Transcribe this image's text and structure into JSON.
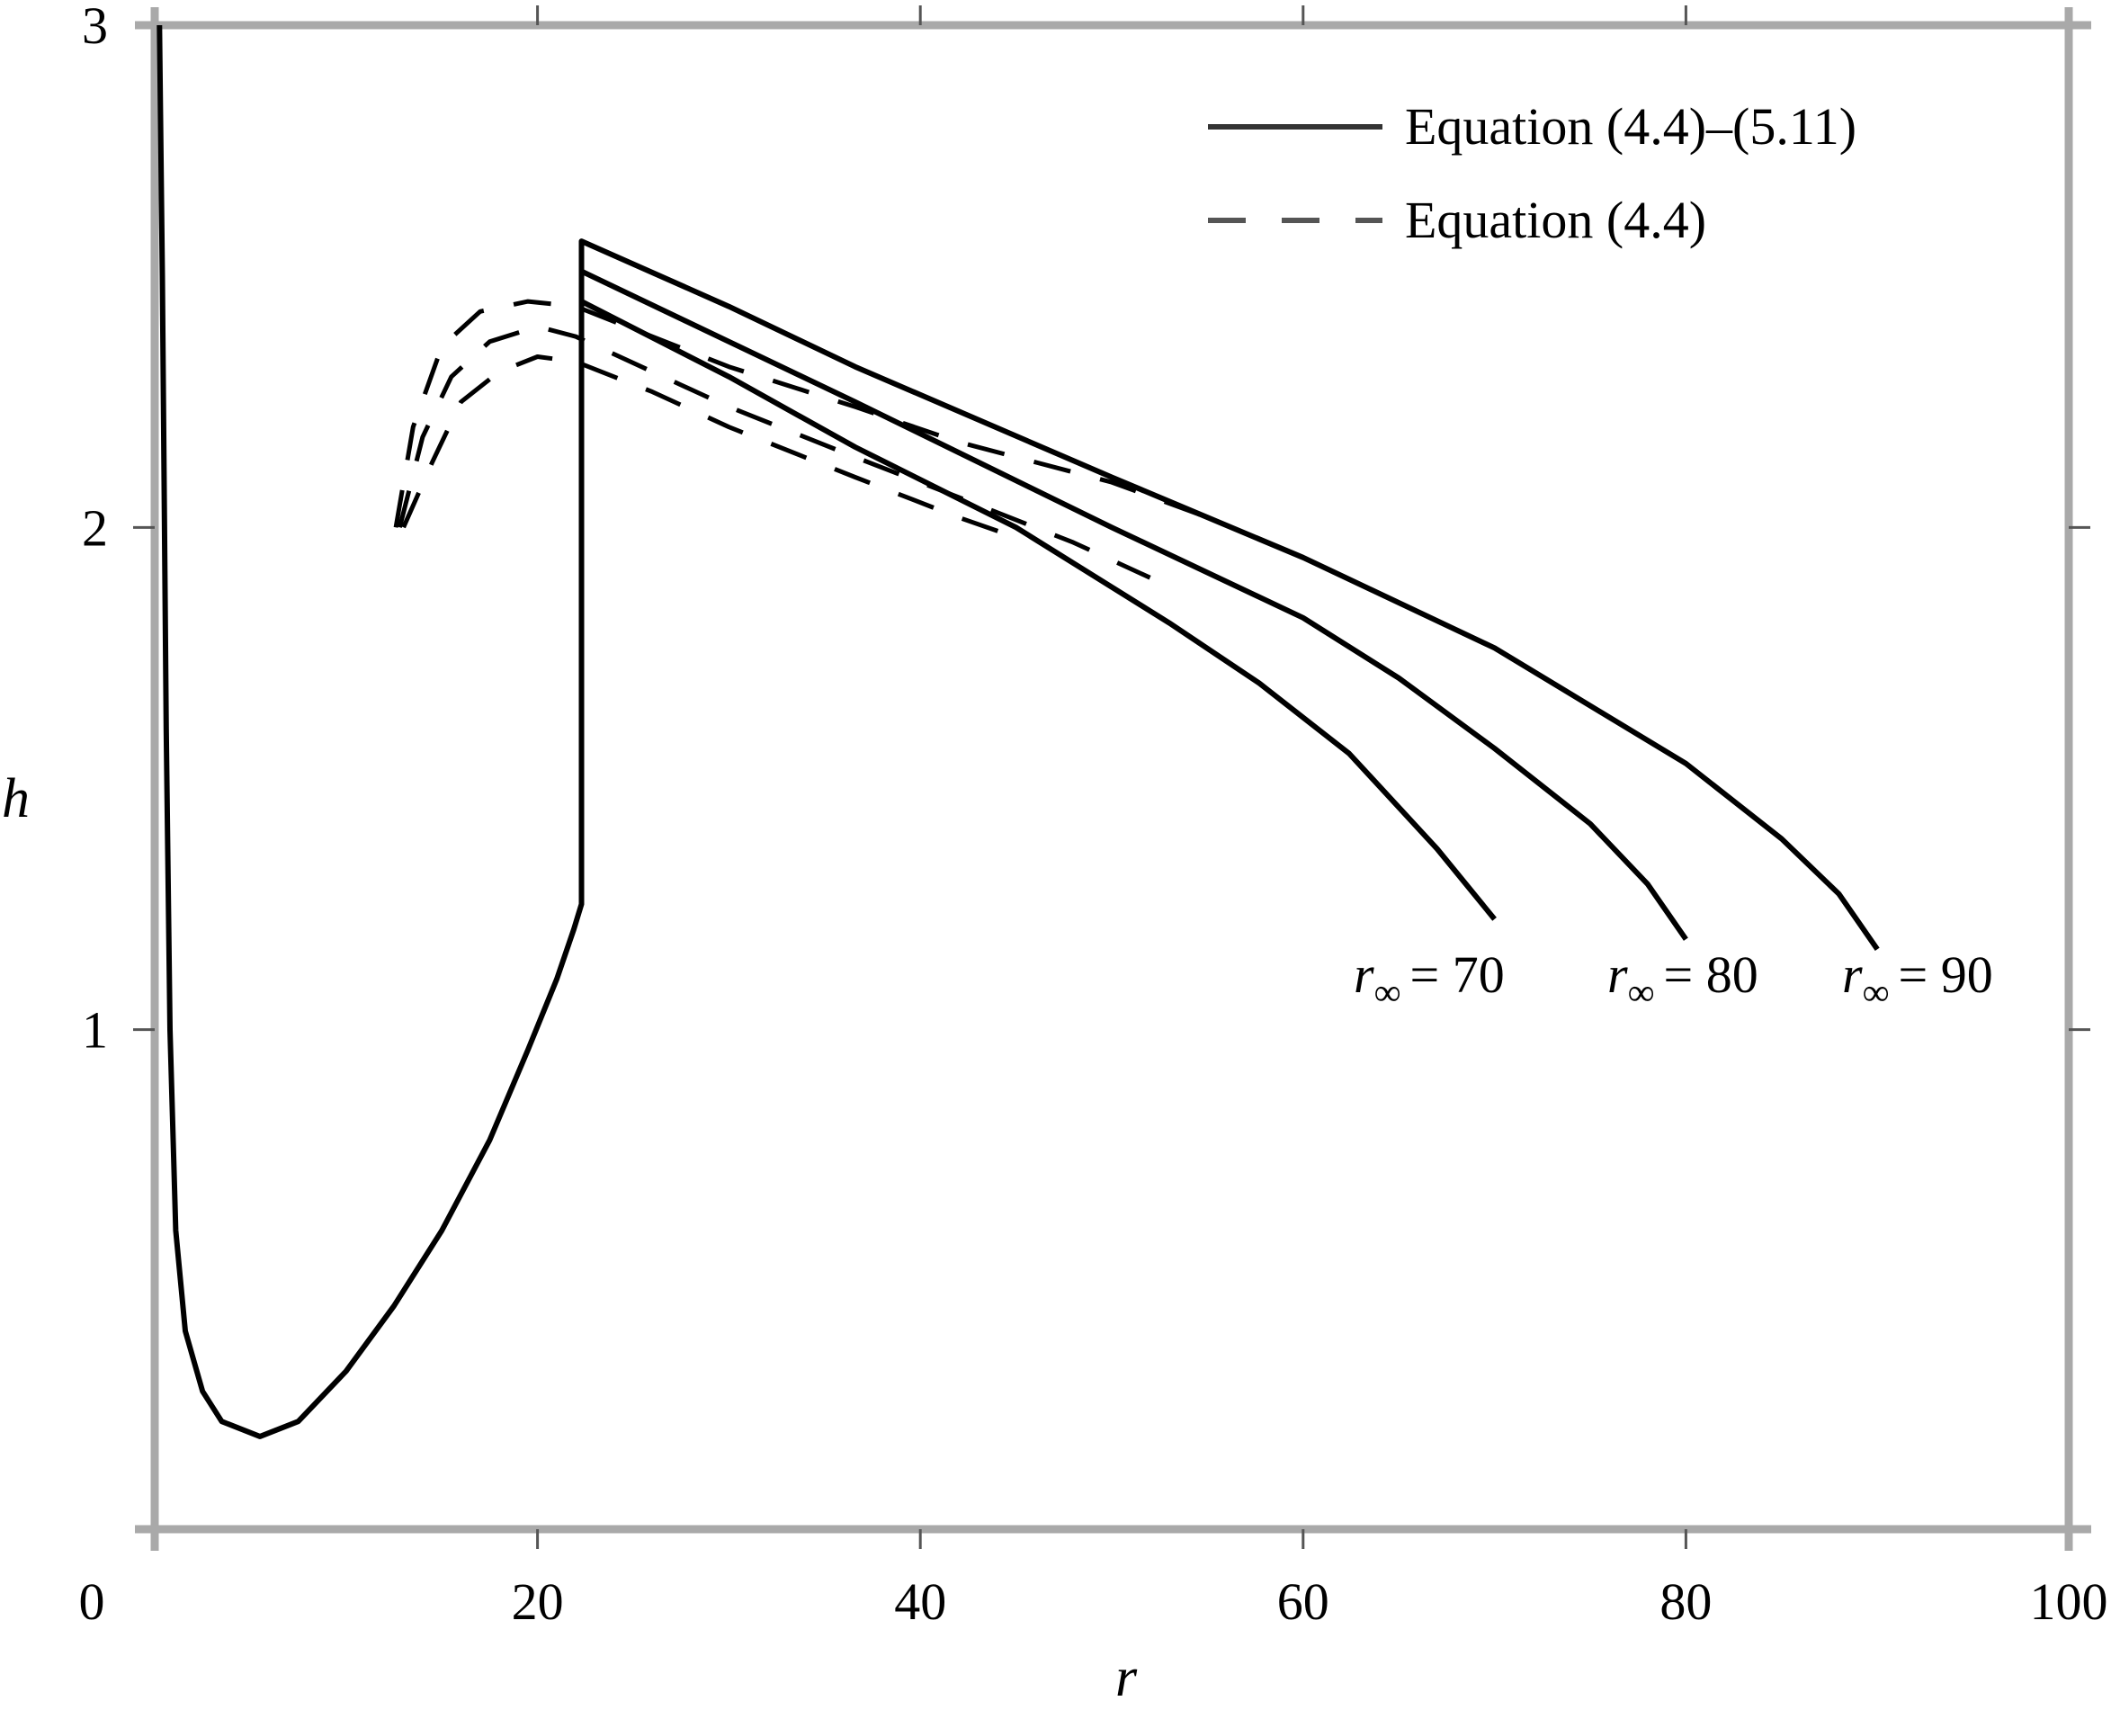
{
  "chart_data": {
    "type": "line",
    "title": "",
    "xlabel": "r",
    "ylabel": "h",
    "xlim": [
      0,
      100
    ],
    "ylim": [
      0,
      3
    ],
    "grid": false,
    "legend_position": "upper right",
    "x_ticks": [
      0,
      20,
      40,
      60,
      80,
      100
    ],
    "x_tick_labels": [
      "0",
      "20",
      "40",
      "60",
      "80",
      "100"
    ],
    "y_ticks": [
      1,
      2,
      3
    ],
    "y_tick_labels": [
      "1",
      "2",
      "3"
    ],
    "legend": [
      {
        "label": "Equation (4.4)–(5.11)",
        "style": "solid"
      },
      {
        "label": "Equation (4.4)",
        "style": "dashed"
      }
    ],
    "series": [
      {
        "name": "Equation (4.4)–(5.11), r∞ = 70",
        "style": "solid",
        "points": [
          [
            0.25,
            3.0
          ],
          [
            0.4,
            2.5
          ],
          [
            0.6,
            1.6
          ],
          [
            0.8,
            1.0
          ],
          [
            1.1,
            0.6
          ],
          [
            1.6,
            0.4
          ],
          [
            2.5,
            0.28
          ],
          [
            3.5,
            0.22
          ],
          [
            5.5,
            0.19
          ],
          [
            7.5,
            0.22
          ],
          [
            10,
            0.32
          ],
          [
            12.5,
            0.45
          ],
          [
            15,
            0.6
          ],
          [
            17.5,
            0.78
          ],
          [
            19.5,
            0.96
          ],
          [
            21,
            1.1
          ],
          [
            21.9,
            1.2
          ],
          [
            22.3,
            1.25
          ],
          [
            22.3,
            2.45
          ],
          [
            30,
            2.3
          ],
          [
            36.6,
            2.16
          ],
          [
            45,
            2.0
          ],
          [
            53,
            1.81
          ],
          [
            57.7,
            1.69
          ],
          [
            62.4,
            1.55
          ],
          [
            67,
            1.36
          ],
          [
            70,
            1.22
          ]
        ]
      },
      {
        "name": "Equation (4.4)–(5.11), r∞ = 80",
        "style": "solid",
        "points": [
          [
            22.3,
            1.25
          ],
          [
            22.3,
            2.51
          ],
          [
            30,
            2.37
          ],
          [
            36.6,
            2.25
          ],
          [
            50,
            2.0
          ],
          [
            60,
            1.82
          ],
          [
            65,
            1.7
          ],
          [
            70,
            1.56
          ],
          [
            75,
            1.41
          ],
          [
            78,
            1.29
          ],
          [
            80,
            1.18
          ]
        ]
      },
      {
        "name": "Equation (4.4)–(5.11), r∞ = 90",
        "style": "solid",
        "points": [
          [
            22.3,
            1.25
          ],
          [
            22.3,
            2.57
          ],
          [
            30,
            2.44
          ],
          [
            36.6,
            2.32
          ],
          [
            50,
            2.1
          ],
          [
            60,
            1.94
          ],
          [
            70,
            1.76
          ],
          [
            80,
            1.53
          ],
          [
            85,
            1.38
          ],
          [
            88,
            1.27
          ],
          [
            90,
            1.16
          ]
        ]
      },
      {
        "name": "Equation (4.4), r∞ = 90",
        "style": "dashed",
        "points": [
          [
            12.6,
            2.0
          ],
          [
            13.5,
            2.2
          ],
          [
            15,
            2.36
          ],
          [
            17,
            2.43
          ],
          [
            19.5,
            2.45
          ],
          [
            22,
            2.44
          ],
          [
            26,
            2.38
          ],
          [
            30,
            2.32
          ],
          [
            36.6,
            2.24
          ],
          [
            42,
            2.17
          ],
          [
            50,
            2.09
          ],
          [
            55,
            2.02
          ]
        ]
      },
      {
        "name": "Equation (4.4), r∞ = 80",
        "style": "dashed",
        "points": [
          [
            12.8,
            2.0
          ],
          [
            14,
            2.18
          ],
          [
            15.5,
            2.3
          ],
          [
            17.5,
            2.37
          ],
          [
            20,
            2.4
          ],
          [
            22,
            2.38
          ],
          [
            26,
            2.31
          ],
          [
            30,
            2.24
          ],
          [
            36.6,
            2.14
          ],
          [
            42,
            2.06
          ],
          [
            48,
            1.97
          ],
          [
            52,
            1.9
          ]
        ]
      },
      {
        "name": "Equation (4.4), r∞ = 70",
        "style": "dashed",
        "points": [
          [
            13.0,
            2.0
          ],
          [
            14.5,
            2.13
          ],
          [
            16,
            2.25
          ],
          [
            18,
            2.31
          ],
          [
            20,
            2.34
          ],
          [
            22,
            2.33
          ],
          [
            26,
            2.27
          ],
          [
            30,
            2.2
          ],
          [
            36.6,
            2.1
          ],
          [
            42,
            2.02
          ],
          [
            45,
            1.98
          ]
        ]
      }
    ],
    "annotations": [
      {
        "text_var": "r",
        "text_sub": "∞",
        "text_rest": " = 70",
        "x": 70,
        "y": 1.05
      },
      {
        "text_var": "r",
        "text_sub": "∞",
        "text_rest": " = 80",
        "x": 80,
        "y": 1.05
      },
      {
        "text_var": "r",
        "text_sub": "∞",
        "text_rest": " = 90",
        "x": 90,
        "y": 1.05
      }
    ]
  },
  "colors": {
    "axis": "#a9a9a9",
    "tick": "#555555",
    "line": "#000000"
  },
  "labels": {
    "x_axis": "r",
    "y_axis": "h",
    "legend_solid": "Equation (4.4)–(5.11)",
    "legend_dashed": "Equation (4.4)",
    "annot_70": "= 70",
    "annot_80": "= 80",
    "annot_90": "= 90",
    "annot_var": "r",
    "annot_sub": "∞"
  }
}
